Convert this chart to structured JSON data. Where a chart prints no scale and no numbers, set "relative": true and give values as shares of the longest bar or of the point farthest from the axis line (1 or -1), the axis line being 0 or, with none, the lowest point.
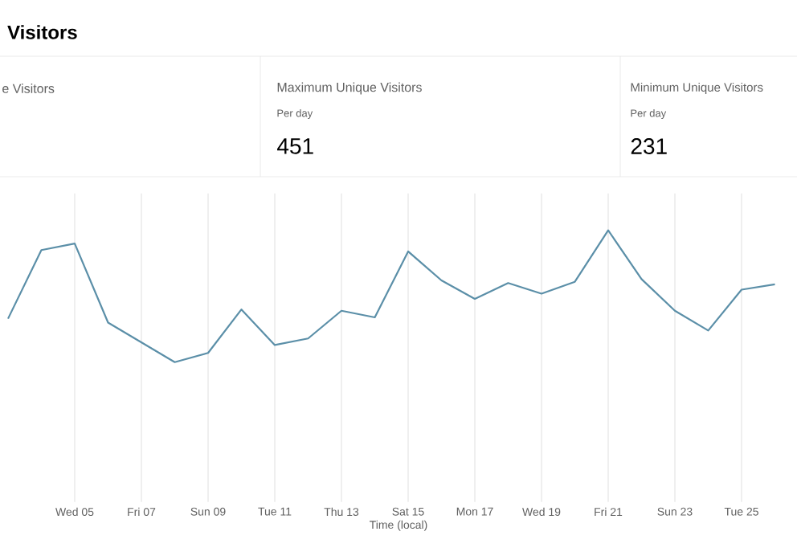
{
  "chart_data": {
    "type": "line",
    "title": "Visitors",
    "xlabel": "Time (local)",
    "relative": true,
    "grid": "x",
    "marker": "none",
    "line_style": "solid",
    "annotations": [
      "e Visitors",
      "Maximum Unique Visitors",
      "Per day",
      "451",
      "Minimum Unique Visitors",
      "Per day",
      "231"
    ],
    "categories": [
      null,
      null,
      "Wed 05",
      null,
      "Fri 07",
      null,
      "Sun 09",
      null,
      "Tue 11",
      null,
      "Thu 13",
      null,
      "Sat 15",
      null,
      "Mon 17",
      null,
      "Wed 19",
      null,
      "Fri 21",
      null,
      "Sun 23",
      null,
      "Tue 25",
      null
    ],
    "series": [
      {
        "color": "#5b8fa8",
        "values": [
          0.33,
          0.85,
          0.9,
          0.3,
          0.15,
          0,
          0.07,
          0.4,
          0.13,
          0.18,
          0.39,
          0.34,
          0.84,
          0.62,
          0.48,
          0.6,
          0.52,
          0.61,
          1,
          0.63,
          0.39,
          0.24,
          0.55,
          0.59
        ]
      }
    ]
  }
}
